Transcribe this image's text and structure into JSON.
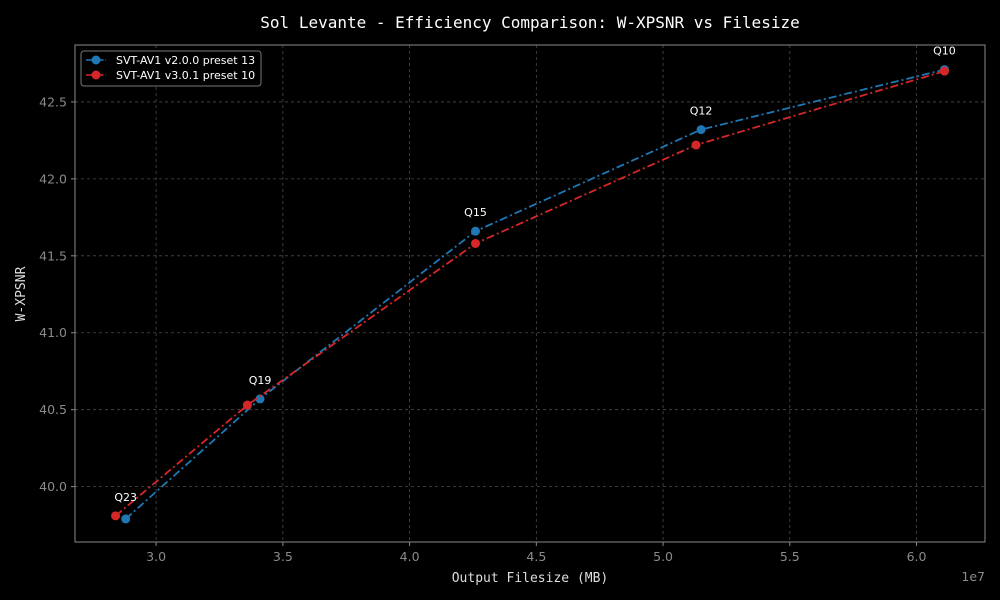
{
  "chart_data": {
    "type": "line",
    "title": "Sol Levante - Efficiency Comparison: W-XPSNR vs Filesize",
    "xlabel": "Output Filesize (MB)",
    "ylabel": "W-XPSNR",
    "x_offset_label": "1e7",
    "xlim": [
      2.68,
      6.27
    ],
    "ylim": [
      39.64,
      42.87
    ],
    "x_ticks": [
      3.0,
      3.5,
      4.0,
      4.5,
      5.0,
      5.5,
      6.0
    ],
    "x_tick_labels": [
      "3.0",
      "3.5",
      "4.0",
      "4.5",
      "5.0",
      "5.5",
      "6.0"
    ],
    "y_ticks": [
      40.0,
      40.5,
      41.0,
      41.5,
      42.0,
      42.5
    ],
    "y_tick_labels": [
      "40.0",
      "40.5",
      "41.0",
      "41.5",
      "42.0",
      "42.5"
    ],
    "grid": true,
    "legend_position": "top-left",
    "series": [
      {
        "name": "SVT-AV1 v2.0.0 preset 13",
        "color": "#1f77b4",
        "x": [
          2.88,
          3.41,
          4.26,
          5.15,
          6.11
        ],
        "y": [
          39.79,
          40.57,
          41.66,
          42.32,
          42.71
        ]
      },
      {
        "name": "SVT-AV1 v3.0.1 preset 10",
        "color": "#d62728",
        "x": [
          2.84,
          3.36,
          4.26,
          5.13,
          6.11
        ],
        "y": [
          39.81,
          40.53,
          41.58,
          42.22,
          42.7
        ]
      }
    ],
    "annotations": [
      {
        "text": "Q23",
        "x": 2.88,
        "y": 39.81
      },
      {
        "text": "Q19",
        "x": 3.41,
        "y": 40.57
      },
      {
        "text": "Q15",
        "x": 4.26,
        "y": 41.66
      },
      {
        "text": "Q12",
        "x": 5.15,
        "y": 42.32
      },
      {
        "text": "Q10",
        "x": 6.11,
        "y": 42.71
      }
    ]
  },
  "colors": {
    "background": "#000000",
    "axes_edge": "#8a8a8a",
    "grid": "#4a4a4a"
  }
}
